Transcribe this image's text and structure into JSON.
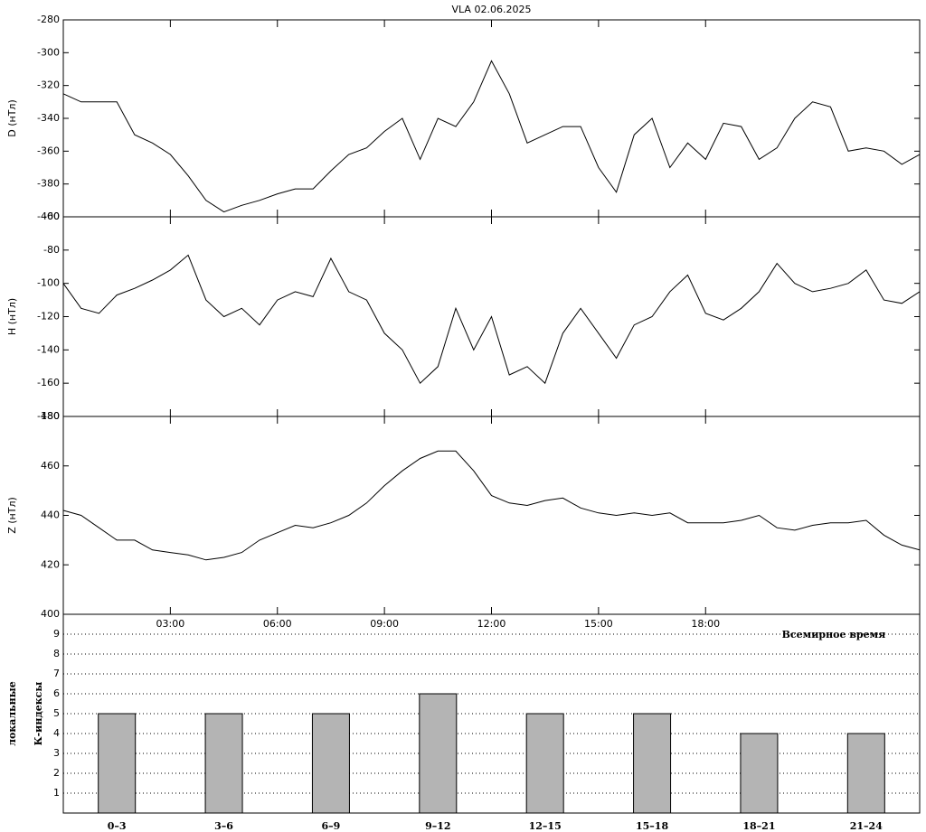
{
  "chart_data": [
    {
      "type": "line",
      "title": "VLA   02.06.2025",
      "ylabel": "D (нТл)",
      "x": [
        0,
        0.5,
        1,
        1.5,
        2,
        2.5,
        3,
        3.5,
        4,
        4.5,
        5,
        5.5,
        6,
        6.5,
        7,
        7.5,
        8,
        8.5,
        9,
        9.5,
        10,
        10.5,
        11,
        11.5,
        12,
        12.5,
        13,
        13.5,
        14,
        14.5,
        15,
        15.5,
        16,
        16.5,
        17,
        17.5,
        18,
        18.5,
        19,
        19.5,
        20,
        20.5,
        21,
        21.5,
        22,
        22.5,
        23,
        23.5,
        24
      ],
      "series": [
        {
          "color": "#000000",
          "values": [
            -325,
            -330,
            -330,
            -330,
            -350,
            -355,
            -362,
            -375,
            -390,
            -397,
            -393,
            -390,
            -386,
            -383,
            -383,
            -372,
            -362,
            -358,
            -348,
            -340,
            -365,
            -340,
            -345,
            -330,
            -305,
            -325,
            -355,
            -350,
            -345,
            -345,
            -370,
            -385,
            -350,
            -340,
            -370,
            -355,
            -365,
            -343,
            -345,
            -365,
            -358,
            -340,
            -330,
            -333,
            -360,
            -358,
            -360,
            -368,
            -362
          ]
        }
      ],
      "xlim": [
        0,
        24
      ],
      "ylim": [
        -400,
        -280
      ],
      "yticks": [
        -400,
        -380,
        -360,
        -340,
        -320,
        -300,
        -280
      ]
    },
    {
      "type": "line",
      "ylabel": "H (нТл)",
      "x": [
        0,
        0.5,
        1,
        1.5,
        2,
        2.5,
        3,
        3.5,
        4,
        4.5,
        5,
        5.5,
        6,
        6.5,
        7,
        7.5,
        8,
        8.5,
        9,
        9.5,
        10,
        10.5,
        11,
        11.5,
        12,
        12.5,
        13,
        13.5,
        14,
        14.5,
        15,
        15.5,
        16,
        16.5,
        17,
        17.5,
        18,
        18.5,
        19,
        19.5,
        20,
        20.5,
        21,
        21.5,
        22,
        22.5,
        23,
        23.5,
        24
      ],
      "series": [
        {
          "color": "#000000",
          "values": [
            -100,
            -115,
            -118,
            -107,
            -103,
            -98,
            -92,
            -83,
            -110,
            -120,
            -115,
            -125,
            -110,
            -105,
            -108,
            -85,
            -105,
            -110,
            -130,
            -140,
            -160,
            -150,
            -115,
            -140,
            -120,
            -155,
            -150,
            -160,
            -130,
            -115,
            -130,
            -145,
            -125,
            -120,
            -105,
            -95,
            -118,
            -122,
            -115,
            -105,
            -88,
            -100,
            -105,
            -103,
            -100,
            -92,
            -110,
            -112,
            -105
          ]
        }
      ],
      "xlim": [
        0,
        24
      ],
      "ylim": [
        -180,
        -60
      ],
      "yticks": [
        -180,
        -160,
        -140,
        -120,
        -100,
        -80,
        -60
      ]
    },
    {
      "type": "line",
      "ylabel": "Z (нТл)",
      "xlabel": "Всемирное время",
      "x": [
        0,
        0.5,
        1,
        1.5,
        2,
        2.5,
        3,
        3.5,
        4,
        4.5,
        5,
        5.5,
        6,
        6.5,
        7,
        7.5,
        8,
        8.5,
        9,
        9.5,
        10,
        10.5,
        11,
        11.5,
        12,
        12.5,
        13,
        13.5,
        14,
        14.5,
        15,
        15.5,
        16,
        16.5,
        17,
        17.5,
        18,
        18.5,
        19,
        19.5,
        20,
        20.5,
        21,
        21.5,
        22,
        22.5,
        23,
        23.5,
        24
      ],
      "series": [
        {
          "color": "#000000",
          "values": [
            442,
            440,
            435,
            430,
            430,
            426,
            425,
            424,
            422,
            423,
            425,
            430,
            433,
            436,
            435,
            437,
            440,
            445,
            452,
            458,
            463,
            466,
            466,
            458,
            448,
            445,
            444,
            446,
            447,
            443,
            441,
            440,
            441,
            440,
            441,
            437,
            437,
            437,
            438,
            440,
            435,
            434,
            436,
            437,
            437,
            438,
            432,
            428,
            426
          ]
        }
      ],
      "xlim": [
        0,
        24
      ],
      "ylim": [
        400,
        480
      ],
      "yticks": [
        400,
        420,
        440,
        460,
        480
      ],
      "xticks": [
        {
          "value": 3,
          "label": "03:00"
        },
        {
          "value": 6,
          "label": "06:00"
        },
        {
          "value": 9,
          "label": "09:00"
        },
        {
          "value": 12,
          "label": "12:00"
        },
        {
          "value": 15,
          "label": "15:00"
        },
        {
          "value": 18,
          "label": "18:00"
        }
      ]
    },
    {
      "type": "bar",
      "ylabel": [
        "локальные",
        "К-индексы"
      ],
      "categories": [
        "0–3",
        "3–6",
        "6–9",
        "9–12",
        "12–15",
        "15–18",
        "18–21",
        "21–24"
      ],
      "values": [
        5,
        5,
        5,
        6,
        5,
        5,
        4,
        4
      ],
      "color": "#b4b4b4",
      "ylim": [
        0,
        10
      ],
      "yticks": [
        1,
        2,
        3,
        4,
        5,
        6,
        7,
        8,
        9
      ],
      "grid": true
    }
  ]
}
